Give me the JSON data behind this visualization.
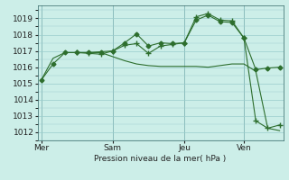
{
  "bg_color": "#cceee8",
  "grid_color": "#99cccc",
  "line_color": "#2d6e2d",
  "xlabel": "Pression niveau de la mer( hPa )",
  "ylim": [
    1011.5,
    1019.8
  ],
  "yticks": [
    1012,
    1013,
    1014,
    1015,
    1016,
    1017,
    1018,
    1019
  ],
  "day_labels": [
    "Mer",
    "Sam",
    "Jeu",
    "Ven"
  ],
  "day_positions": [
    0,
    6,
    12,
    17
  ],
  "xlim": [
    -0.3,
    20.3
  ],
  "series": [
    {
      "x": [
        0,
        1,
        2,
        3,
        4,
        5,
        6,
        7,
        8,
        9,
        10,
        11,
        12,
        13,
        14,
        15,
        16,
        17,
        18,
        19,
        20
      ],
      "y": [
        1015.2,
        1016.2,
        1016.9,
        1016.9,
        1016.9,
        1016.95,
        1017.0,
        1017.5,
        1018.05,
        1017.3,
        1017.5,
        1017.45,
        1017.5,
        1018.9,
        1019.2,
        1018.8,
        1018.75,
        1017.8,
        1015.85,
        1015.95,
        1016.0
      ],
      "marker": "D",
      "markersize": 2.5
    },
    {
      "x": [
        3,
        4,
        5,
        6,
        7,
        8,
        9,
        10,
        11,
        12,
        13,
        14,
        15,
        16,
        17,
        18,
        19,
        20
      ],
      "y": [
        1016.9,
        1016.85,
        1016.8,
        1017.0,
        1017.35,
        1017.45,
        1016.85,
        1017.3,
        1017.4,
        1017.5,
        1019.1,
        1019.3,
        1018.9,
        1018.85,
        1017.8,
        1012.7,
        1012.25,
        1012.45
      ],
      "marker": "+",
      "markersize": 4
    },
    {
      "x": [
        0,
        1,
        2,
        3,
        4,
        5,
        6,
        7,
        8,
        9,
        10,
        11,
        12,
        13,
        14,
        15,
        16,
        17,
        18,
        19,
        20
      ],
      "y": [
        1015.2,
        1016.55,
        1016.9,
        1016.9,
        1016.9,
        1016.9,
        1016.65,
        1016.4,
        1016.2,
        1016.1,
        1016.05,
        1016.05,
        1016.05,
        1016.05,
        1016.0,
        1016.1,
        1016.2,
        1016.2,
        1015.75,
        1012.25,
        1012.1
      ],
      "marker": null,
      "markersize": 0
    }
  ],
  "vline_positions": [
    0,
    6,
    12,
    17
  ]
}
